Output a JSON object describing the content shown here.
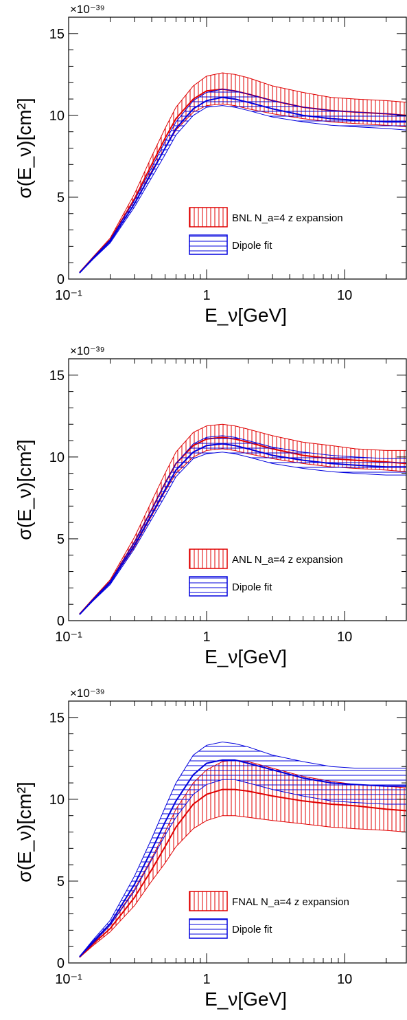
{
  "chart_data": [
    {
      "type": "line",
      "panel": "top",
      "xlabel": "E_ν[GeV]",
      "ylabel": "σ(E_ν)[cm²]",
      "y_multiplier": "×10⁻³⁹",
      "xscale": "log",
      "xlim": [
        0.1,
        28
      ],
      "ylim": [
        0,
        16
      ],
      "x_ticks": [
        {
          "value": 0.1,
          "label": "10⁻¹"
        },
        {
          "value": 1,
          "label": "1"
        },
        {
          "value": 10,
          "label": "10"
        }
      ],
      "y_ticks": [
        0,
        5,
        10,
        15
      ],
      "legend_position": "center-right",
      "x": [
        0.12,
        0.15,
        0.2,
        0.3,
        0.4,
        0.5,
        0.6,
        0.8,
        1.0,
        1.3,
        1.6,
        2,
        3,
        5,
        8,
        12,
        20,
        28
      ],
      "series": [
        {
          "name": "BNL N_a=4 z expansion",
          "color": "#e00000",
          "hatch": "vertical",
          "central": [
            0.4,
            1.3,
            2.4,
            4.9,
            7.0,
            8.6,
            9.8,
            11.0,
            11.5,
            11.6,
            11.5,
            11.3,
            10.9,
            10.5,
            10.3,
            10.2,
            10.1,
            10.0
          ],
          "lower": [
            0.38,
            1.25,
            2.3,
            4.6,
            6.6,
            8.0,
            9.1,
            10.2,
            10.6,
            10.7,
            10.6,
            10.4,
            10.1,
            9.8,
            9.6,
            9.5,
            9.4,
            9.3
          ],
          "upper": [
            0.42,
            1.35,
            2.5,
            5.2,
            7.5,
            9.2,
            10.5,
            11.8,
            12.4,
            12.6,
            12.5,
            12.3,
            11.8,
            11.4,
            11.1,
            11.0,
            10.9,
            10.8
          ]
        },
        {
          "name": "Dipole fit",
          "color": "#0000dd",
          "hatch": "horizontal",
          "central": [
            0.38,
            1.25,
            2.3,
            4.6,
            6.5,
            8.0,
            9.2,
            10.4,
            10.9,
            11.1,
            11.0,
            10.8,
            10.4,
            10.0,
            9.8,
            9.7,
            9.6,
            9.6
          ],
          "lower": [
            0.36,
            1.2,
            2.2,
            4.4,
            6.2,
            7.6,
            8.8,
            10.0,
            10.5,
            10.6,
            10.5,
            10.3,
            9.9,
            9.6,
            9.4,
            9.3,
            9.2,
            9.1
          ],
          "upper": [
            0.4,
            1.3,
            2.4,
            4.8,
            6.8,
            8.4,
            9.6,
            10.9,
            11.4,
            11.6,
            11.5,
            11.3,
            10.9,
            10.5,
            10.3,
            10.2,
            10.1,
            10.0
          ]
        }
      ]
    },
    {
      "type": "line",
      "panel": "middle",
      "xlabel": "E_ν[GeV]",
      "ylabel": "σ(E_ν)[cm²]",
      "y_multiplier": "×10⁻³⁹",
      "xscale": "log",
      "xlim": [
        0.1,
        28
      ],
      "ylim": [
        0,
        16
      ],
      "x_ticks": [
        {
          "value": 0.1,
          "label": "10⁻¹"
        },
        {
          "value": 1,
          "label": "1"
        },
        {
          "value": 10,
          "label": "10"
        }
      ],
      "y_ticks": [
        0,
        5,
        10,
        15
      ],
      "legend_position": "center-right",
      "x": [
        0.12,
        0.15,
        0.2,
        0.3,
        0.4,
        0.5,
        0.6,
        0.8,
        1.0,
        1.3,
        1.6,
        2,
        3,
        5,
        8,
        12,
        20,
        28
      ],
      "series": [
        {
          "name": "ANL N_a=4 z expansion",
          "color": "#e00000",
          "hatch": "vertical",
          "central": [
            0.4,
            1.3,
            2.4,
            4.8,
            6.8,
            8.4,
            9.6,
            10.7,
            11.1,
            11.2,
            11.1,
            10.9,
            10.5,
            10.1,
            9.9,
            9.8,
            9.7,
            9.6
          ],
          "lower": [
            0.38,
            1.25,
            2.3,
            4.5,
            6.4,
            7.9,
            9.0,
            10.0,
            10.4,
            10.5,
            10.4,
            10.2,
            9.9,
            9.6,
            9.4,
            9.3,
            9.2,
            9.1
          ],
          "upper": [
            0.42,
            1.35,
            2.5,
            5.1,
            7.3,
            9.0,
            10.3,
            11.5,
            11.9,
            12.0,
            11.9,
            11.7,
            11.3,
            10.9,
            10.7,
            10.5,
            10.4,
            10.4
          ]
        },
        {
          "name": "Dipole fit",
          "color": "#0000dd",
          "hatch": "horizontal",
          "central": [
            0.38,
            1.25,
            2.3,
            4.6,
            6.5,
            8.0,
            9.2,
            10.3,
            10.7,
            10.8,
            10.7,
            10.5,
            10.1,
            9.8,
            9.6,
            9.5,
            9.4,
            9.4
          ],
          "lower": [
            0.36,
            1.2,
            2.2,
            4.4,
            6.2,
            7.6,
            8.8,
            9.9,
            10.2,
            10.3,
            10.2,
            10.0,
            9.6,
            9.3,
            9.1,
            9.0,
            8.9,
            8.9
          ],
          "upper": [
            0.4,
            1.3,
            2.4,
            4.8,
            6.8,
            8.4,
            9.6,
            10.8,
            11.2,
            11.3,
            11.2,
            11.0,
            10.6,
            10.3,
            10.1,
            10.0,
            9.9,
            9.9
          ]
        }
      ]
    },
    {
      "type": "line",
      "panel": "bottom",
      "xlabel": "E_ν[GeV]",
      "ylabel": "σ(E_ν)[cm²]",
      "y_multiplier": "×10⁻³⁹",
      "xscale": "log",
      "xlim": [
        0.1,
        28
      ],
      "ylim": [
        0,
        16
      ],
      "x_ticks": [
        {
          "value": 0.1,
          "label": "10⁻¹"
        },
        {
          "value": 1,
          "label": "1"
        },
        {
          "value": 10,
          "label": "10"
        }
      ],
      "y_ticks": [
        0,
        5,
        10,
        15
      ],
      "legend_position": "center-right",
      "x": [
        0.12,
        0.15,
        0.2,
        0.3,
        0.4,
        0.5,
        0.6,
        0.8,
        1.0,
        1.3,
        1.6,
        2,
        3,
        5,
        8,
        12,
        20,
        28
      ],
      "series": [
        {
          "name": "FNAL N_a=4 z expansion",
          "color": "#e00000",
          "hatch": "vertical",
          "central": [
            0.35,
            1.15,
            2.1,
            4.0,
            5.7,
            7.1,
            8.3,
            9.7,
            10.3,
            10.6,
            10.6,
            10.5,
            10.2,
            9.9,
            9.7,
            9.6,
            9.4,
            9.3
          ],
          "lower": [
            0.33,
            1.05,
            1.9,
            3.5,
            5.0,
            6.1,
            7.1,
            8.2,
            8.7,
            9.0,
            9.0,
            8.9,
            8.7,
            8.5,
            8.3,
            8.2,
            8.1,
            8.0
          ],
          "upper": [
            0.37,
            1.25,
            2.3,
            4.5,
            6.4,
            8.0,
            9.4,
            11.0,
            11.8,
            12.3,
            12.4,
            12.3,
            11.9,
            11.4,
            11.1,
            10.9,
            10.8,
            10.7
          ]
        },
        {
          "name": "Dipole fit",
          "color": "#0000dd",
          "hatch": "horizontal",
          "central": [
            0.38,
            1.3,
            2.4,
            4.8,
            6.9,
            8.6,
            9.9,
            11.5,
            12.2,
            12.4,
            12.4,
            12.2,
            11.8,
            11.3,
            11.0,
            10.9,
            10.8,
            10.8
          ],
          "lower": [
            0.36,
            1.2,
            2.3,
            4.4,
            6.3,
            7.8,
            8.9,
            10.3,
            10.9,
            11.2,
            11.2,
            11.0,
            10.6,
            10.2,
            9.9,
            9.8,
            9.7,
            9.7
          ],
          "upper": [
            0.4,
            1.4,
            2.6,
            5.3,
            7.6,
            9.5,
            11.0,
            12.7,
            13.3,
            13.5,
            13.4,
            13.2,
            12.7,
            12.3,
            12.0,
            11.9,
            11.9,
            11.9
          ]
        }
      ]
    }
  ]
}
